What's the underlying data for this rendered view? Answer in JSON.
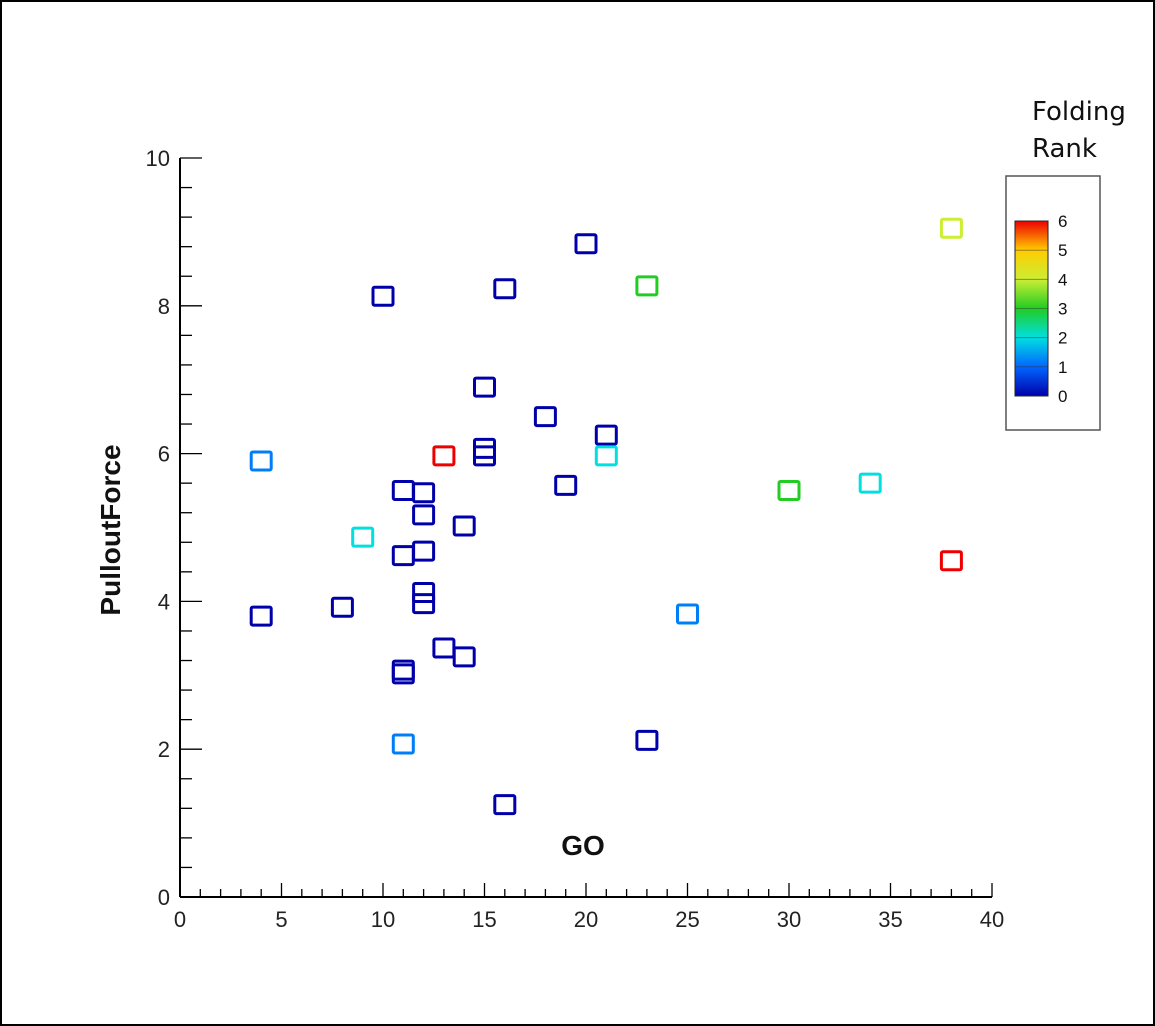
{
  "chart_data": {
    "type": "scatter",
    "xlabel": "GO",
    "ylabel": "PulloutForce",
    "xlim": [
      0,
      40
    ],
    "ylim": [
      0,
      10
    ],
    "x_ticks": [
      "0",
      "5",
      "10",
      "15",
      "20",
      "25",
      "30",
      "35",
      "40"
    ],
    "y_ticks": [
      "0",
      "2",
      "4",
      "6",
      "8",
      "10"
    ],
    "marker": "hollow-square",
    "grid": false,
    "legend": {
      "title_line1": "Folding",
      "title_line2": "Rank",
      "placement": "top-right",
      "labels": [
        "6",
        "5",
        "4",
        "3",
        "2",
        "1",
        "0"
      ],
      "min": 0,
      "max": 6,
      "colors": [
        "#0000aa",
        "#0066ff",
        "#00e0e0",
        "#22cc22",
        "#ccee33",
        "#ffcc00",
        "#ee0000"
      ]
    },
    "points": [
      {
        "x": 4,
        "y": 5.9,
        "rank": 1.2
      },
      {
        "x": 4,
        "y": 3.8,
        "rank": 0
      },
      {
        "x": 8,
        "y": 3.92,
        "rank": 0
      },
      {
        "x": 9,
        "y": 4.87,
        "rank": 2
      },
      {
        "x": 10,
        "y": 8.13,
        "rank": 0
      },
      {
        "x": 11,
        "y": 5.5,
        "rank": 0
      },
      {
        "x": 11,
        "y": 4.62,
        "rank": 0
      },
      {
        "x": 11,
        "y": 3.07,
        "rank": 0
      },
      {
        "x": 11,
        "y": 3.02,
        "rank": 0
      },
      {
        "x": 11,
        "y": 2.07,
        "rank": 1.2
      },
      {
        "x": 12,
        "y": 5.47,
        "rank": 0
      },
      {
        "x": 12,
        "y": 5.17,
        "rank": 0
      },
      {
        "x": 12,
        "y": 4.68,
        "rank": 0
      },
      {
        "x": 12,
        "y": 4.12,
        "rank": 0
      },
      {
        "x": 12,
        "y": 3.97,
        "rank": 0
      },
      {
        "x": 13,
        "y": 5.97,
        "rank": 6
      },
      {
        "x": 13,
        "y": 3.37,
        "rank": 0
      },
      {
        "x": 14,
        "y": 5.02,
        "rank": 0
      },
      {
        "x": 14,
        "y": 3.25,
        "rank": 0
      },
      {
        "x": 15,
        "y": 6.9,
        "rank": 0
      },
      {
        "x": 15,
        "y": 6.07,
        "rank": 0
      },
      {
        "x": 15,
        "y": 5.97,
        "rank": 0
      },
      {
        "x": 16,
        "y": 8.23,
        "rank": 0
      },
      {
        "x": 16,
        "y": 1.25,
        "rank": 0
      },
      {
        "x": 18,
        "y": 6.5,
        "rank": 0
      },
      {
        "x": 19,
        "y": 5.57,
        "rank": 0
      },
      {
        "x": 20,
        "y": 8.84,
        "rank": 0
      },
      {
        "x": 21,
        "y": 6.25,
        "rank": 0
      },
      {
        "x": 21,
        "y": 5.97,
        "rank": 2
      },
      {
        "x": 23,
        "y": 8.27,
        "rank": 3
      },
      {
        "x": 23,
        "y": 2.12,
        "rank": 0
      },
      {
        "x": 25,
        "y": 3.83,
        "rank": 1.2
      },
      {
        "x": 30,
        "y": 5.5,
        "rank": 3
      },
      {
        "x": 34,
        "y": 5.6,
        "rank": 2
      },
      {
        "x": 38,
        "y": 9.05,
        "rank": 4
      },
      {
        "x": 38,
        "y": 4.55,
        "rank": 6
      }
    ]
  }
}
